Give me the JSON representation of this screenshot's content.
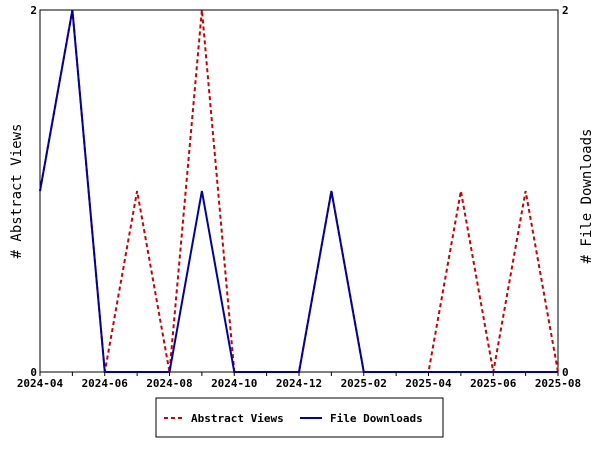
{
  "chart_data": {
    "type": "line",
    "x": [
      "2024-04",
      "2024-05",
      "2024-06",
      "2024-07",
      "2024-08",
      "2024-09",
      "2024-10",
      "2024-11",
      "2024-12",
      "2025-01",
      "2025-02",
      "2025-03",
      "2025-04",
      "2025-05",
      "2025-06",
      "2025-07",
      "2025-08"
    ],
    "xtick_labels": [
      "2024-04",
      "2024-06",
      "2024-08",
      "2024-10",
      "2024-12",
      "2025-02",
      "2025-04",
      "2025-06",
      "2025-08"
    ],
    "series": [
      {
        "name": "Abstract Views",
        "values": [
          1,
          2,
          0,
          1,
          0,
          2,
          0,
          0,
          0,
          1,
          0,
          0,
          0,
          1,
          0,
          1,
          0
        ],
        "color": "#cc0000",
        "style": "dashed",
        "axis": "left"
      },
      {
        "name": "File Downloads",
        "values": [
          1,
          2,
          0,
          0,
          0,
          1,
          0,
          0,
          0,
          1,
          0,
          0,
          0,
          0,
          0,
          0,
          0
        ],
        "color": "#0000aa",
        "style": "solid",
        "axis": "right"
      }
    ],
    "ylabel": "# Abstract Views",
    "ylabel_right": "# File Downloads",
    "ylim": [
      0,
      2
    ],
    "ylim_right": [
      0,
      2
    ],
    "yticks": [
      "0",
      "2"
    ],
    "yticks_right": [
      "0",
      "2"
    ],
    "legend_placement": "bottom-center",
    "grid": false
  }
}
